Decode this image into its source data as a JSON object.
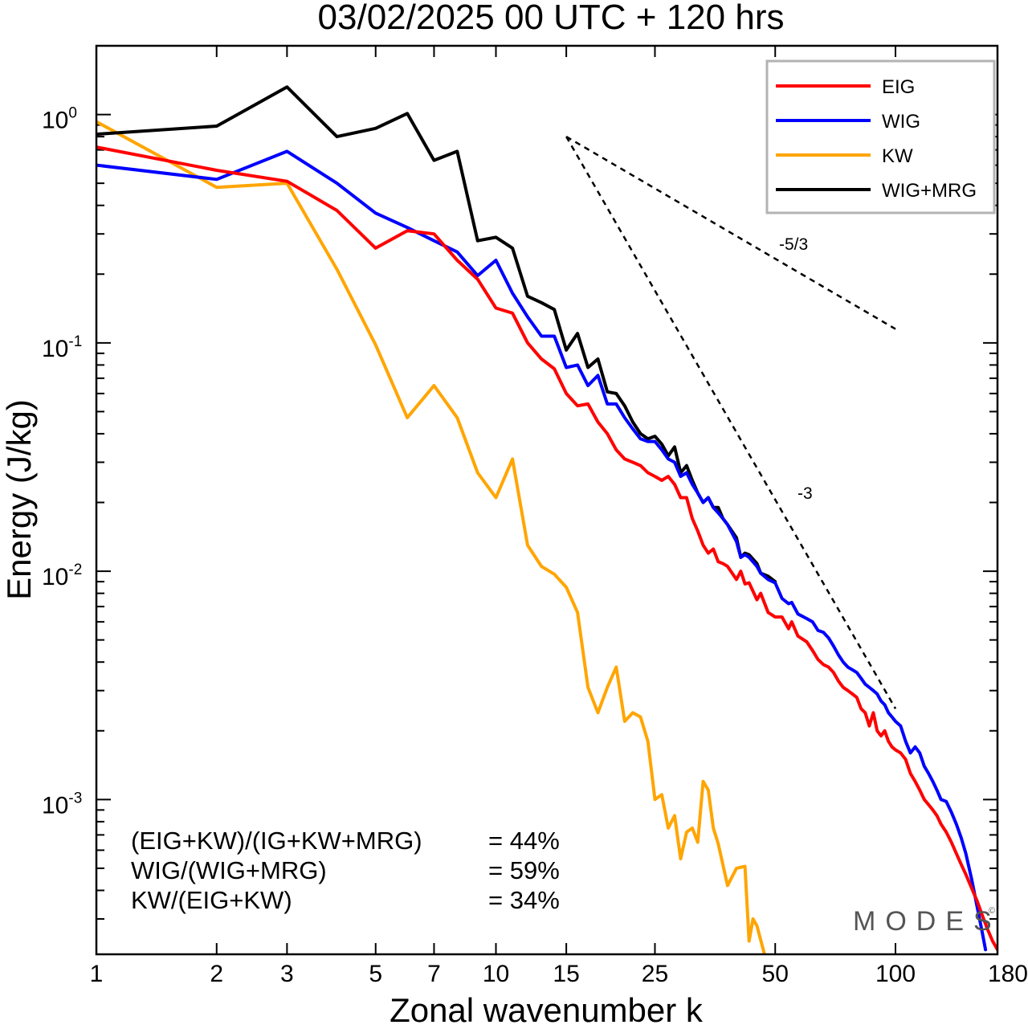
{
  "chart_data": {
    "type": "line",
    "title": "03/02/2025  00 UTC  + 120 hrs",
    "xlabel": "Zonal wavenumber k",
    "ylabel": "Energy (J/kg)",
    "xscale": "log",
    "yscale": "log",
    "xlim": [
      1,
      180
    ],
    "ylim": [
      0.00021,
      2.0
    ],
    "x_ticks": [
      1,
      2,
      3,
      5,
      7,
      10,
      15,
      25,
      50,
      100,
      180
    ],
    "x_tick_labels": [
      "1",
      "2",
      "3",
      "5",
      "7",
      "10",
      "15",
      "25",
      "50",
      "100",
      "180"
    ],
    "y_ticks": [
      {
        "value": 1,
        "base": "10",
        "exp": "0"
      },
      {
        "value": 0.1,
        "base": "10",
        "exp": "-1"
      },
      {
        "value": 0.01,
        "base": "10",
        "exp": "-2"
      },
      {
        "value": 0.001,
        "base": "10",
        "exp": "-3"
      }
    ],
    "grid": false,
    "legend_position": "top-right",
    "series": [
      {
        "name": "EIG",
        "color": "#ff0000",
        "points": [
          [
            1,
            0.72
          ],
          [
            2,
            0.57
          ],
          [
            3,
            0.51
          ],
          [
            4,
            0.38
          ],
          [
            5,
            0.26
          ],
          [
            6,
            0.31
          ],
          [
            7,
            0.3
          ],
          [
            8,
            0.23
          ],
          [
            9,
            0.19
          ],
          [
            10,
            0.142
          ],
          [
            11,
            0.135
          ],
          [
            12,
            0.1
          ],
          [
            13,
            0.085
          ],
          [
            14,
            0.077
          ],
          [
            15,
            0.06
          ],
          [
            16,
            0.053
          ],
          [
            17,
            0.054
          ],
          [
            18,
            0.045
          ],
          [
            19,
            0.04
          ],
          [
            20,
            0.034
          ],
          [
            21,
            0.031
          ],
          [
            22,
            0.03
          ],
          [
            23,
            0.029
          ],
          [
            24,
            0.027
          ],
          [
            25,
            0.026
          ],
          [
            26,
            0.025
          ],
          [
            27,
            0.026
          ],
          [
            28,
            0.024
          ],
          [
            29,
            0.021
          ],
          [
            30,
            0.021
          ],
          [
            31,
            0.017
          ],
          [
            32,
            0.015
          ],
          [
            33,
            0.013
          ],
          [
            34,
            0.012
          ],
          [
            35,
            0.0125
          ],
          [
            36,
            0.011
          ],
          [
            37,
            0.0108
          ],
          [
            38,
            0.0105
          ],
          [
            40,
            0.0092
          ],
          [
            41,
            0.01
          ],
          [
            42,
            0.0088
          ],
          [
            43,
            0.0089
          ],
          [
            45,
            0.0075
          ],
          [
            46,
            0.008
          ],
          [
            48,
            0.0066
          ],
          [
            50,
            0.0063
          ],
          [
            52,
            0.0063
          ],
          [
            54,
            0.0056
          ],
          [
            55,
            0.006
          ],
          [
            57,
            0.0052
          ],
          [
            60,
            0.0049
          ],
          [
            62,
            0.0045
          ],
          [
            64,
            0.0041
          ],
          [
            66,
            0.0039
          ],
          [
            68,
            0.0038
          ],
          [
            70,
            0.0036
          ],
          [
            72,
            0.0033
          ],
          [
            74,
            0.0031
          ],
          [
            76,
            0.003
          ],
          [
            78,
            0.0029
          ],
          [
            80,
            0.0028
          ],
          [
            82,
            0.0025
          ],
          [
            84,
            0.0024
          ],
          [
            86,
            0.0021
          ],
          [
            88,
            0.0024
          ],
          [
            90,
            0.002
          ],
          [
            92,
            0.0019
          ],
          [
            94,
            0.002
          ],
          [
            96,
            0.0018
          ],
          [
            98,
            0.0017
          ],
          [
            100,
            0.00165
          ],
          [
            103,
            0.0016
          ],
          [
            106,
            0.0015
          ],
          [
            109,
            0.0013
          ],
          [
            112,
            0.0012
          ],
          [
            115,
            0.0011
          ],
          [
            118,
            0.001
          ],
          [
            121,
            0.00095
          ],
          [
            124,
            0.0009
          ],
          [
            127,
            0.00085
          ],
          [
            130,
            0.00078
          ],
          [
            134,
            0.00072
          ],
          [
            138,
            0.00065
          ],
          [
            142,
            0.00058
          ],
          [
            146,
            0.00052
          ],
          [
            150,
            0.00047
          ],
          [
            155,
            0.00041
          ],
          [
            160,
            0.00036
          ],
          [
            165,
            0.00031
          ],
          [
            170,
            0.00027
          ],
          [
            175,
            0.00024
          ],
          [
            180,
            0.00022
          ]
        ]
      },
      {
        "name": "WIG",
        "color": "#0000ff",
        "points": [
          [
            1,
            0.6
          ],
          [
            2,
            0.52
          ],
          [
            3,
            0.69
          ],
          [
            4,
            0.5
          ],
          [
            5,
            0.37
          ],
          [
            6,
            0.32
          ],
          [
            7,
            0.28
          ],
          [
            8,
            0.25
          ],
          [
            9,
            0.197
          ],
          [
            10,
            0.23
          ],
          [
            11,
            0.165
          ],
          [
            12,
            0.13
          ],
          [
            13,
            0.107
          ],
          [
            14,
            0.107
          ],
          [
            15,
            0.078
          ],
          [
            16,
            0.08
          ],
          [
            17,
            0.065
          ],
          [
            18,
            0.072
          ],
          [
            19,
            0.054
          ],
          [
            20,
            0.054
          ],
          [
            21,
            0.047
          ],
          [
            22,
            0.042
          ],
          [
            23,
            0.038
          ],
          [
            24,
            0.037
          ],
          [
            25,
            0.037
          ],
          [
            26,
            0.034
          ],
          [
            27,
            0.031
          ],
          [
            28,
            0.03
          ],
          [
            29,
            0.026
          ],
          [
            30,
            0.027
          ],
          [
            31,
            0.024
          ],
          [
            32,
            0.022
          ],
          [
            33,
            0.02
          ],
          [
            34,
            0.021
          ],
          [
            35,
            0.019
          ],
          [
            36,
            0.018
          ],
          [
            37,
            0.017
          ],
          [
            38,
            0.016
          ],
          [
            40,
            0.0135
          ],
          [
            41,
            0.0115
          ],
          [
            42,
            0.0118
          ],
          [
            43,
            0.0115
          ],
          [
            45,
            0.0105
          ],
          [
            46,
            0.0098
          ],
          [
            48,
            0.0092
          ],
          [
            50,
            0.0089
          ],
          [
            52,
            0.0076
          ],
          [
            54,
            0.0072
          ],
          [
            55,
            0.0073
          ],
          [
            57,
            0.0065
          ],
          [
            60,
            0.0062
          ],
          [
            62,
            0.006
          ],
          [
            64,
            0.0055
          ],
          [
            66,
            0.0054
          ],
          [
            68,
            0.0051
          ],
          [
            70,
            0.0047
          ],
          [
            72,
            0.0043
          ],
          [
            74,
            0.004
          ],
          [
            76,
            0.0038
          ],
          [
            78,
            0.0037
          ],
          [
            80,
            0.0036
          ],
          [
            82,
            0.0034
          ],
          [
            84,
            0.0032
          ],
          [
            86,
            0.0031
          ],
          [
            88,
            0.003
          ],
          [
            90,
            0.0029
          ],
          [
            92,
            0.0027
          ],
          [
            94,
            0.0026
          ],
          [
            96,
            0.0024
          ],
          [
            98,
            0.0023
          ],
          [
            100,
            0.0022
          ],
          [
            103,
            0.0021
          ],
          [
            106,
            0.0018
          ],
          [
            109,
            0.0016
          ],
          [
            112,
            0.0017
          ],
          [
            115,
            0.0016
          ],
          [
            118,
            0.0014
          ],
          [
            121,
            0.0013
          ],
          [
            124,
            0.0012
          ],
          [
            127,
            0.0011
          ],
          [
            130,
            0.001
          ],
          [
            134,
            0.00098
          ],
          [
            138,
            0.00088
          ],
          [
            142,
            0.00078
          ],
          [
            146,
            0.00068
          ],
          [
            150,
            0.00058
          ],
          [
            155,
            0.00045
          ],
          [
            160,
            0.00034
          ],
          [
            165,
            0.00026
          ],
          [
            168,
            0.00022
          ]
        ]
      },
      {
        "name": "KW",
        "color": "#ffa500",
        "points": [
          [
            1,
            0.93
          ],
          [
            2,
            0.48
          ],
          [
            3,
            0.5
          ],
          [
            4,
            0.21
          ],
          [
            5,
            0.098
          ],
          [
            6,
            0.047
          ],
          [
            7,
            0.065
          ],
          [
            8,
            0.047
          ],
          [
            9,
            0.027
          ],
          [
            10,
            0.021
          ],
          [
            11,
            0.031
          ],
          [
            12,
            0.013
          ],
          [
            13,
            0.0105
          ],
          [
            14,
            0.0097
          ],
          [
            15,
            0.0085
          ],
          [
            16,
            0.0066
          ],
          [
            17,
            0.0031
          ],
          [
            18,
            0.0024
          ],
          [
            19,
            0.0031
          ],
          [
            20,
            0.0038
          ],
          [
            21,
            0.0022
          ],
          [
            22,
            0.0024
          ],
          [
            23,
            0.0023
          ],
          [
            24,
            0.0018
          ],
          [
            25,
            0.001
          ],
          [
            26,
            0.00105
          ],
          [
            27,
            0.00075
          ],
          [
            28,
            0.00085
          ],
          [
            29,
            0.00055
          ],
          [
            30,
            0.00072
          ],
          [
            31,
            0.00075
          ],
          [
            32,
            0.00065
          ],
          [
            33,
            0.0012
          ],
          [
            34,
            0.0011
          ],
          [
            35,
            0.00075
          ],
          [
            36,
            0.00064
          ],
          [
            38,
            0.00042
          ],
          [
            40,
            0.0005
          ],
          [
            42,
            0.00051
          ],
          [
            43,
            0.00024
          ],
          [
            44,
            0.0003
          ],
          [
            45,
            0.00028
          ],
          [
            47,
            0.00021
          ]
        ]
      },
      {
        "name": "WIG+MRG",
        "color": "#000000",
        "points": [
          [
            1,
            0.82
          ],
          [
            2,
            0.89
          ],
          [
            3,
            1.32
          ],
          [
            4,
            0.8
          ],
          [
            5,
            0.87
          ],
          [
            6,
            1.01
          ],
          [
            7,
            0.63
          ],
          [
            8,
            0.69
          ],
          [
            9,
            0.28
          ],
          [
            10,
            0.29
          ],
          [
            11,
            0.26
          ],
          [
            12,
            0.16
          ],
          [
            13,
            0.15
          ],
          [
            14,
            0.14
          ],
          [
            15,
            0.093
          ],
          [
            16,
            0.11
          ],
          [
            17,
            0.078
          ],
          [
            18,
            0.085
          ],
          [
            19,
            0.061
          ],
          [
            20,
            0.06
          ],
          [
            21,
            0.053
          ],
          [
            22,
            0.045
          ],
          [
            23,
            0.04
          ],
          [
            24,
            0.038
          ],
          [
            25,
            0.039
          ],
          [
            26,
            0.036
          ],
          [
            27,
            0.032
          ],
          [
            28,
            0.035
          ],
          [
            29,
            0.027
          ],
          [
            30,
            0.029
          ],
          [
            31,
            0.025
          ],
          [
            32,
            0.022
          ],
          [
            33,
            0.02
          ],
          [
            34,
            0.021
          ],
          [
            35,
            0.019
          ],
          [
            36,
            0.019
          ],
          [
            37,
            0.017
          ],
          [
            38,
            0.016
          ],
          [
            40,
            0.014
          ],
          [
            41,
            0.0115
          ],
          [
            42,
            0.012
          ],
          [
            43,
            0.0118
          ],
          [
            45,
            0.0108
          ],
          [
            46,
            0.0098
          ],
          [
            48,
            0.0095
          ],
          [
            50,
            0.009
          ]
        ]
      }
    ],
    "reference_lines": [
      {
        "label": "-5/3",
        "points": [
          [
            15,
            0.8
          ],
          [
            100,
            0.115
          ]
        ]
      },
      {
        "label": "-3",
        "points": [
          [
            15,
            0.8
          ],
          [
            100,
            0.0025
          ]
        ]
      }
    ],
    "ratios": [
      {
        "label": "(EIG+KW)/(IG+KW+MRG)",
        "value": "= 44%"
      },
      {
        "label": "WIG/(WIG+MRG)",
        "value": "= 59%"
      },
      {
        "label": "KW/(EIG+KW)",
        "value": "= 34%"
      }
    ],
    "watermark": "MODES",
    "watermark_mark": "©"
  }
}
